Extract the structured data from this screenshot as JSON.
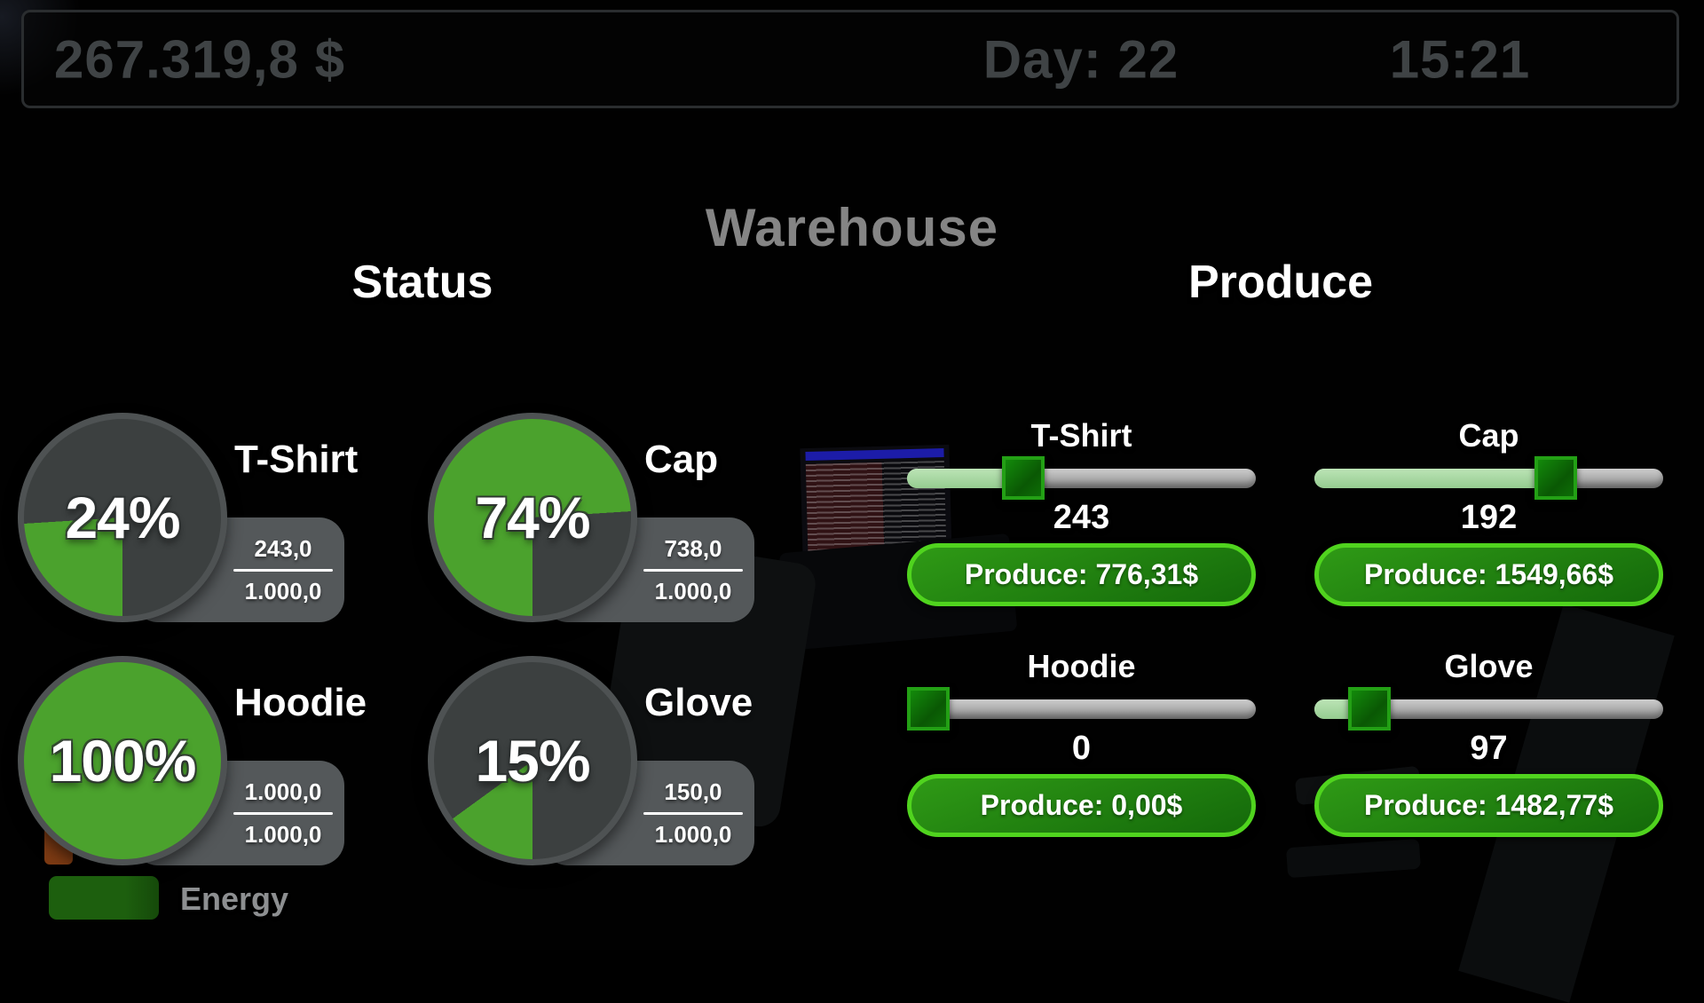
{
  "topbar": {
    "money": "267.319,8 $",
    "day_label": "Day: 22",
    "time": "15:21"
  },
  "title": "Warehouse",
  "sections": {
    "status_title": "Status",
    "produce_title": "Produce"
  },
  "status_items": [
    {
      "name": "T-Shirt",
      "percent": "24%",
      "pct": 24,
      "current": "243,0",
      "capacity": "1.000,0"
    },
    {
      "name": "Cap",
      "percent": "74%",
      "pct": 74,
      "current": "738,0",
      "capacity": "1.000,0"
    },
    {
      "name": "Hoodie",
      "percent": "100%",
      "pct": 100,
      "current": "1.000,0",
      "capacity": "1.000,0"
    },
    {
      "name": "Glove",
      "percent": "15%",
      "pct": 15,
      "current": "150,0",
      "capacity": "1.000,0"
    }
  ],
  "produce_items": [
    {
      "name": "T-Shirt",
      "amount": "243",
      "slider_pct": 31,
      "button": "Produce: 776,31$"
    },
    {
      "name": "Cap",
      "amount": "192",
      "slider_pct": 72,
      "button": "Produce: 1549,66$"
    },
    {
      "name": "Hoodie",
      "amount": "0",
      "slider_pct": 0,
      "button": "Produce: 0,00$"
    },
    {
      "name": "Glove",
      "amount": "97",
      "slider_pct": 11,
      "button": "Produce: 1482,77$"
    }
  ],
  "legend": {
    "energy_label": "Energy"
  },
  "colors": {
    "accent_green": "#4ba22d",
    "pie_empty": "#3c4040",
    "panel_gray": "#54585a",
    "button_border": "#50d41e",
    "button_bg_top": "#2f9a16",
    "button_bg_bottom": "#14690a",
    "slider_fill": "#95cc90",
    "energy_bar": "#1d5f0e"
  }
}
